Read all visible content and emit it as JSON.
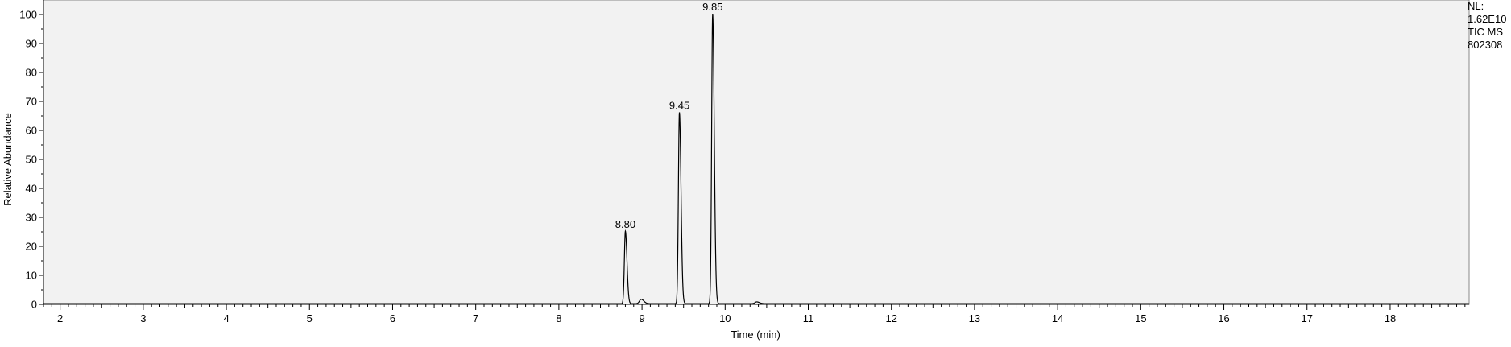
{
  "chart_data": {
    "type": "line",
    "xlabel": "Time (min)",
    "ylabel": "Relative Abundance",
    "xlim": [
      1.8,
      18.95
    ],
    "ylim": [
      0,
      100
    ],
    "x_ticks": [
      2,
      3,
      4,
      5,
      6,
      7,
      8,
      9,
      10,
      11,
      12,
      13,
      14,
      15,
      16,
      17,
      18
    ],
    "y_ticks": [
      0,
      10,
      20,
      30,
      40,
      50,
      60,
      70,
      80,
      90,
      100
    ],
    "grid": false,
    "peaks": [
      {
        "time": 8.8,
        "abundance": 25,
        "label": "8.80"
      },
      {
        "time": 9.45,
        "abundance": 66,
        "label": "9.45"
      },
      {
        "time": 9.85,
        "abundance": 100,
        "label": "9.85"
      }
    ],
    "minor_peaks": [
      {
        "time": 8.99,
        "abundance": 1.5
      },
      {
        "time": 10.38,
        "abundance": 0.6
      }
    ]
  },
  "info": {
    "nl_label": "NL:",
    "nl_value": "1.62E10",
    "scan_filter": "TIC  MS",
    "sample_id": "802308"
  },
  "colors": {
    "trace": "#000000",
    "plot_background": "#f2f2f2",
    "axis": "#000000"
  }
}
